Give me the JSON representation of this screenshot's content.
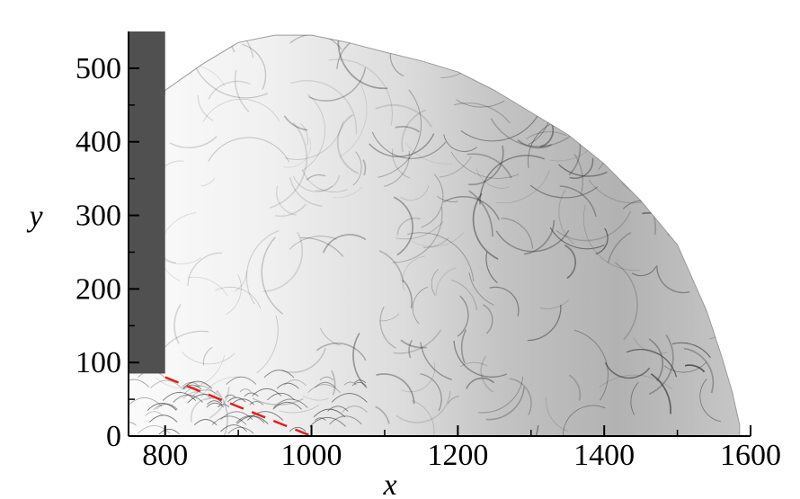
{
  "chart_data": {
    "type": "heatmap",
    "title": "",
    "xlabel": "x",
    "ylabel": "y",
    "xlim": [
      750,
      1600
    ],
    "ylim": [
      0,
      550
    ],
    "x_ticks": [
      800,
      1000,
      1200,
      1400,
      1600
    ],
    "x_minor_ticks": [
      900,
      1100,
      1300,
      1500
    ],
    "y_ticks": [
      0,
      100,
      200,
      300,
      400,
      500
    ],
    "y_minor_ticks": [
      50,
      150,
      250,
      350,
      450
    ],
    "grid": false,
    "colormap": "grayscale schlieren (white = low gradient, black = high gradient)",
    "colors": {
      "wall": "#505050",
      "dashed_line": "#e02020",
      "background": "#ffffff"
    },
    "wall_region": {
      "x": [
        750,
        800
      ],
      "y": [
        85,
        550
      ]
    },
    "dashed_line": {
      "x": [
        800,
        1000
      ],
      "y": [
        80,
        0
      ]
    },
    "detonation_front_boundary": {
      "x": [
        800,
        850,
        900,
        950,
        1000,
        1050,
        1100,
        1150,
        1200,
        1250,
        1300,
        1350,
        1400,
        1450,
        1500,
        1540,
        1560,
        1575,
        1585
      ],
      "y": [
        470,
        505,
        535,
        545,
        545,
        535,
        522,
        510,
        495,
        470,
        440,
        410,
        370,
        320,
        260,
        170,
        110,
        60,
        15
      ]
    }
  }
}
